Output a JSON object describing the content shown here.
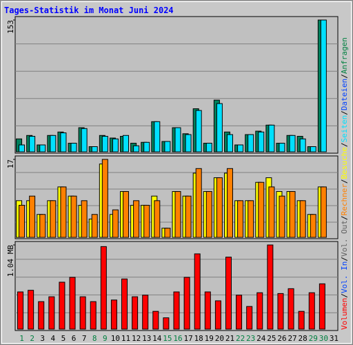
{
  "header": {
    "title": "Tages-Statistik im Monat Juni 2024"
  },
  "legend_separator": "/",
  "legend": [
    {
      "name": "Volumen",
      "color": "#ff0000"
    },
    {
      "name": "Vol. In",
      "color": "#0040ff"
    },
    {
      "name": "Vol. Out",
      "color": "#606060"
    },
    {
      "name": "Rechner",
      "color": "#ff8000"
    },
    {
      "name": "Besuche",
      "color": "#ffff00"
    },
    {
      "name": "Seiten",
      "color": "#00e0ff"
    },
    {
      "name": "Dateien",
      "color": "#0040ff"
    },
    {
      "name": "Anfragen",
      "color": "#008040"
    }
  ],
  "categories": [
    "1",
    "2",
    "3",
    "4",
    "5",
    "6",
    "7",
    "8",
    "9",
    "10",
    "11",
    "12",
    "13",
    "14",
    "15",
    "16",
    "17",
    "18",
    "19",
    "20",
    "21",
    "22",
    "23",
    "24",
    "25",
    "26",
    "27",
    "28",
    "29",
    "30",
    "31"
  ],
  "category_colors": [
    "#008040",
    "#008040",
    "#000000",
    "#000000",
    "#000000",
    "#000000",
    "#000000",
    "#008040",
    "#008040",
    "#000000",
    "#000000",
    "#000000",
    "#000000",
    "#000000",
    "#008040",
    "#008040",
    "#000000",
    "#000000",
    "#000000",
    "#000000",
    "#000000",
    "#008040",
    "#008040",
    "#000000",
    "#000000",
    "#000000",
    "#000000",
    "#000000",
    "#008040",
    "#008040",
    "#000000"
  ],
  "chart_data": [
    {
      "type": "bar",
      "ylim": [
        0,
        153
      ],
      "yticks": [
        153
      ],
      "series": [
        {
          "color": "#00805c",
          "values": [
            15,
            19,
            8,
            19,
            23,
            10,
            28,
            6,
            19,
            16,
            18,
            10,
            11,
            35,
            12,
            28,
            21,
            50,
            10,
            60,
            23,
            8,
            20,
            24,
            31,
            10,
            19,
            18,
            6,
            153,
            0
          ]
        },
        {
          "color": "#00e0ff",
          "values": [
            8,
            18,
            8,
            19,
            22,
            10,
            27,
            6,
            18,
            15,
            19,
            7,
            11,
            35,
            12,
            28,
            20,
            48,
            10,
            56,
            20,
            8,
            20,
            23,
            31,
            10,
            19,
            15,
            6,
            153,
            0
          ]
        }
      ]
    },
    {
      "type": "bar",
      "ylim": [
        0,
        17
      ],
      "yticks": [
        17
      ],
      "series": [
        {
          "color": "#ffff00",
          "values": [
            8,
            8,
            5,
            8,
            11,
            9,
            7,
            4,
            16,
            5,
            10,
            7,
            7,
            9,
            2,
            10,
            9,
            14,
            10,
            13,
            14,
            8,
            8,
            12,
            13,
            10,
            10,
            8,
            5,
            11,
            0
          ]
        },
        {
          "color": "#ff8000",
          "values": [
            7,
            9,
            5,
            8,
            11,
            9,
            8,
            5,
            17,
            6,
            10,
            8,
            7,
            8,
            2,
            10,
            9,
            15,
            10,
            13,
            15,
            8,
            8,
            12,
            11,
            9,
            10,
            8,
            5,
            11,
            0
          ]
        }
      ]
    },
    {
      "type": "bar",
      "ylim": [
        0,
        1.04
      ],
      "yticks": [
        {
          "value": 1.04,
          "label": "1.04 MB"
        }
      ],
      "series": [
        {
          "color": "#ff0000",
          "values": [
            0.46,
            0.48,
            0.34,
            0.4,
            0.58,
            0.64,
            0.4,
            0.34,
            1.02,
            0.36,
            0.62,
            0.4,
            0.42,
            0.22,
            0.14,
            0.46,
            0.64,
            0.93,
            0.46,
            0.35,
            0.89,
            0.42,
            0.28,
            0.45,
            1.04,
            0.44,
            0.5,
            0.22,
            0.45,
            0.56,
            0
          ]
        }
      ]
    }
  ]
}
